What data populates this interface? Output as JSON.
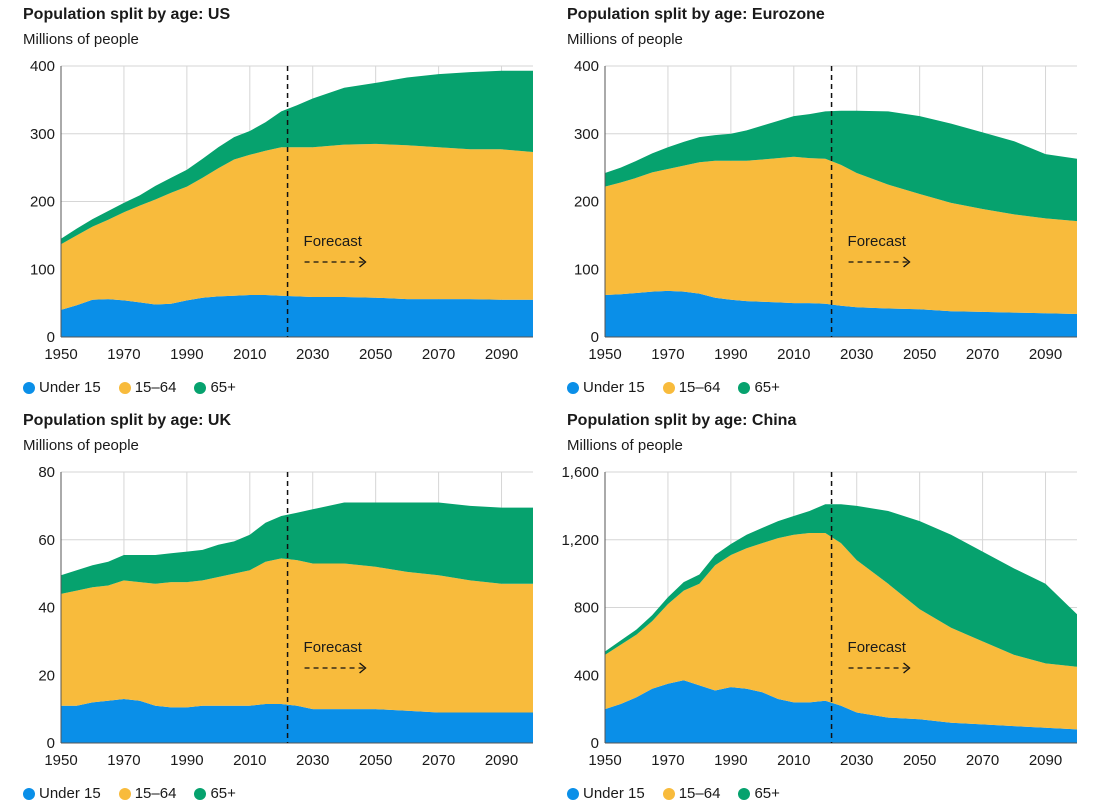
{
  "colors": {
    "under15": "#0a8fe8",
    "mid": "#f8bb3c",
    "over65": "#06a26e",
    "grid": "#d6d6d6"
  },
  "legend": [
    "Under 15",
    "15–64",
    "65+"
  ],
  "forecast_label": "Forecast",
  "chart_data": [
    {
      "type": "area",
      "title": "Population split by age: US",
      "subtitle": "Millions of people",
      "x_ticks": [
        1950,
        1970,
        1990,
        2010,
        2030,
        2050,
        2070,
        2090
      ],
      "y_ticks": [
        "0",
        "100",
        "200",
        "300",
        "400"
      ],
      "ylim": [
        0,
        400
      ],
      "xlim": [
        1950,
        2100
      ],
      "forecast_start": 2022,
      "x": [
        1950,
        1955,
        1960,
        1965,
        1970,
        1975,
        1980,
        1985,
        1990,
        1995,
        2000,
        2005,
        2010,
        2015,
        2020,
        2025,
        2030,
        2040,
        2050,
        2060,
        2070,
        2080,
        2090,
        2100
      ],
      "series": [
        {
          "name": "Under 15",
          "values": [
            40,
            47,
            55,
            56,
            54,
            51,
            48,
            49,
            54,
            58,
            60,
            61,
            62,
            62,
            61,
            60,
            59,
            59,
            58,
            56,
            56,
            56,
            55,
            55
          ]
        },
        {
          "name": "15–64",
          "values": [
            97,
            103,
            108,
            117,
            130,
            143,
            155,
            164,
            168,
            177,
            189,
            201,
            207,
            213,
            219,
            220,
            221,
            225,
            227,
            227,
            224,
            221,
            222,
            218
          ]
        },
        {
          "name": "65+",
          "values": [
            8,
            10,
            11,
            13,
            14,
            15,
            20,
            22,
            25,
            28,
            31,
            33,
            35,
            42,
            53,
            62,
            72,
            84,
            90,
            100,
            108,
            114,
            116,
            120
          ]
        }
      ]
    },
    {
      "type": "area",
      "title": "Population split by age: Eurozone",
      "subtitle": "Millions of people",
      "x_ticks": [
        1950,
        1970,
        1990,
        2010,
        2030,
        2050,
        2070,
        2090
      ],
      "y_ticks": [
        "0",
        "100",
        "200",
        "300",
        "400"
      ],
      "ylim": [
        0,
        400
      ],
      "xlim": [
        1950,
        2100
      ],
      "forecast_start": 2022,
      "x": [
        1950,
        1955,
        1960,
        1965,
        1970,
        1975,
        1980,
        1985,
        1990,
        1995,
        2000,
        2005,
        2010,
        2015,
        2020,
        2025,
        2030,
        2040,
        2050,
        2060,
        2070,
        2080,
        2090,
        2100
      ],
      "series": [
        {
          "name": "Under 15",
          "values": [
            62,
            63,
            65,
            67,
            68,
            67,
            64,
            58,
            55,
            53,
            52,
            51,
            50,
            50,
            49,
            46,
            44,
            42,
            41,
            38,
            37,
            36,
            35,
            34
          ]
        },
        {
          "name": "15–64",
          "values": [
            160,
            165,
            170,
            176,
            180,
            186,
            194,
            202,
            205,
            207,
            210,
            213,
            216,
            214,
            214,
            208,
            198,
            183,
            170,
            160,
            152,
            145,
            140,
            137
          ]
        },
        {
          "name": "65+",
          "values": [
            20,
            22,
            25,
            28,
            32,
            35,
            37,
            38,
            40,
            45,
            50,
            55,
            60,
            65,
            70,
            80,
            92,
            108,
            115,
            117,
            113,
            108,
            95,
            92
          ]
        }
      ]
    },
    {
      "type": "area",
      "title": "Population split by age: UK",
      "subtitle": "Millions of people",
      "x_ticks": [
        1950,
        1970,
        1990,
        2010,
        2030,
        2050,
        2070,
        2090
      ],
      "y_ticks": [
        "0",
        "20",
        "40",
        "60",
        "80"
      ],
      "ylim": [
        0,
        80
      ],
      "xlim": [
        1950,
        2100
      ],
      "forecast_start": 2022,
      "x": [
        1950,
        1955,
        1960,
        1965,
        1970,
        1975,
        1980,
        1985,
        1990,
        1995,
        2000,
        2005,
        2010,
        2015,
        2020,
        2025,
        2030,
        2040,
        2050,
        2060,
        2070,
        2080,
        2090,
        2100
      ],
      "series": [
        {
          "name": "Under 15",
          "values": [
            11,
            11,
            12,
            12.5,
            13,
            12.5,
            11,
            10.5,
            10.5,
            11,
            11,
            11,
            11,
            11.5,
            11.5,
            11,
            10,
            10,
            10,
            9.5,
            9,
            9,
            9,
            9
          ]
        },
        {
          "name": "15–64",
          "values": [
            33,
            34,
            34,
            34,
            35,
            35,
            36,
            37,
            37,
            37,
            38,
            39,
            40,
            42,
            43,
            43,
            43,
            43,
            42,
            41,
            40.5,
            39,
            38,
            38
          ]
        },
        {
          "name": "65+",
          "values": [
            5.5,
            6,
            6.5,
            7,
            7.5,
            8,
            8.5,
            8.5,
            9,
            9,
            9.5,
            9.5,
            10.5,
            11.5,
            12.5,
            14,
            16,
            18,
            19,
            20.5,
            21.5,
            22,
            22.5,
            22.5
          ]
        }
      ]
    },
    {
      "type": "area",
      "title": "Population split by age: China",
      "subtitle": "Millions of people",
      "x_ticks": [
        1950,
        1970,
        1990,
        2010,
        2030,
        2050,
        2070,
        2090
      ],
      "y_ticks": [
        "0",
        "400",
        "800",
        "1,200",
        "1,600"
      ],
      "ylim": [
        0,
        1600
      ],
      "xlim": [
        1950,
        2100
      ],
      "forecast_start": 2022,
      "x": [
        1950,
        1955,
        1960,
        1965,
        1970,
        1975,
        1980,
        1985,
        1990,
        1995,
        2000,
        2005,
        2010,
        2015,
        2020,
        2025,
        2030,
        2040,
        2050,
        2060,
        2070,
        2080,
        2090,
        2100
      ],
      "series": [
        {
          "name": "Under 15",
          "values": [
            200,
            230,
            270,
            320,
            350,
            370,
            340,
            310,
            330,
            320,
            300,
            260,
            240,
            240,
            250,
            220,
            180,
            150,
            140,
            120,
            110,
            100,
            90,
            80
          ]
        },
        {
          "name": "15–64",
          "values": [
            320,
            350,
            370,
            400,
            470,
            530,
            600,
            740,
            780,
            830,
            880,
            950,
            990,
            1000,
            990,
            960,
            900,
            790,
            650,
            560,
            490,
            420,
            380,
            370
          ]
        },
        {
          "name": "65+",
          "values": [
            20,
            25,
            30,
            35,
            40,
            50,
            55,
            60,
            65,
            80,
            90,
            100,
            110,
            130,
            170,
            230,
            320,
            430,
            520,
            550,
            530,
            510,
            470,
            310
          ]
        }
      ]
    }
  ]
}
